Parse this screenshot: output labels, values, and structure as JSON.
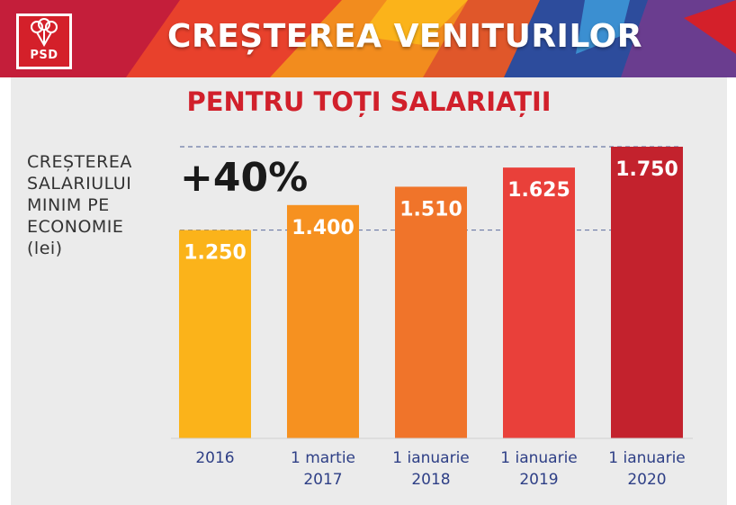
{
  "header": {
    "title": "CREȘTEREA VENITURILOR",
    "logo_text": "PSD",
    "colors": {
      "brand_red": "#d4202a",
      "accent_orange": "#f28c1e",
      "accent_blue": "#2d4c9c"
    }
  },
  "subtitle": "PENTRU TOȚI SALARIAȚII",
  "y_label": {
    "lines": [
      "CREȘTEREA",
      "SALARIULUI",
      "MINIM PE",
      "ECONOMIE"
    ],
    "unit": "(lei)"
  },
  "callout": "+40%",
  "chart_data": {
    "type": "bar",
    "categories": [
      [
        "2016"
      ],
      [
        "1 martie",
        "2017"
      ],
      [
        "1 ianuarie",
        "2018"
      ],
      [
        "1 ianuarie",
        "2019"
      ],
      [
        "1 ianuarie",
        "2020"
      ]
    ],
    "values": [
      1250,
      1400,
      1510,
      1625,
      1750
    ],
    "value_labels": [
      "1.250",
      "1.400",
      "1.510",
      "1.625",
      "1.750"
    ],
    "bar_colors": [
      "#fbb31a",
      "#f69120",
      "#f0742a",
      "#e9403a",
      "#c3222d"
    ],
    "reference_lines": [
      1750,
      1250
    ],
    "ylim": [
      0,
      1750
    ]
  }
}
